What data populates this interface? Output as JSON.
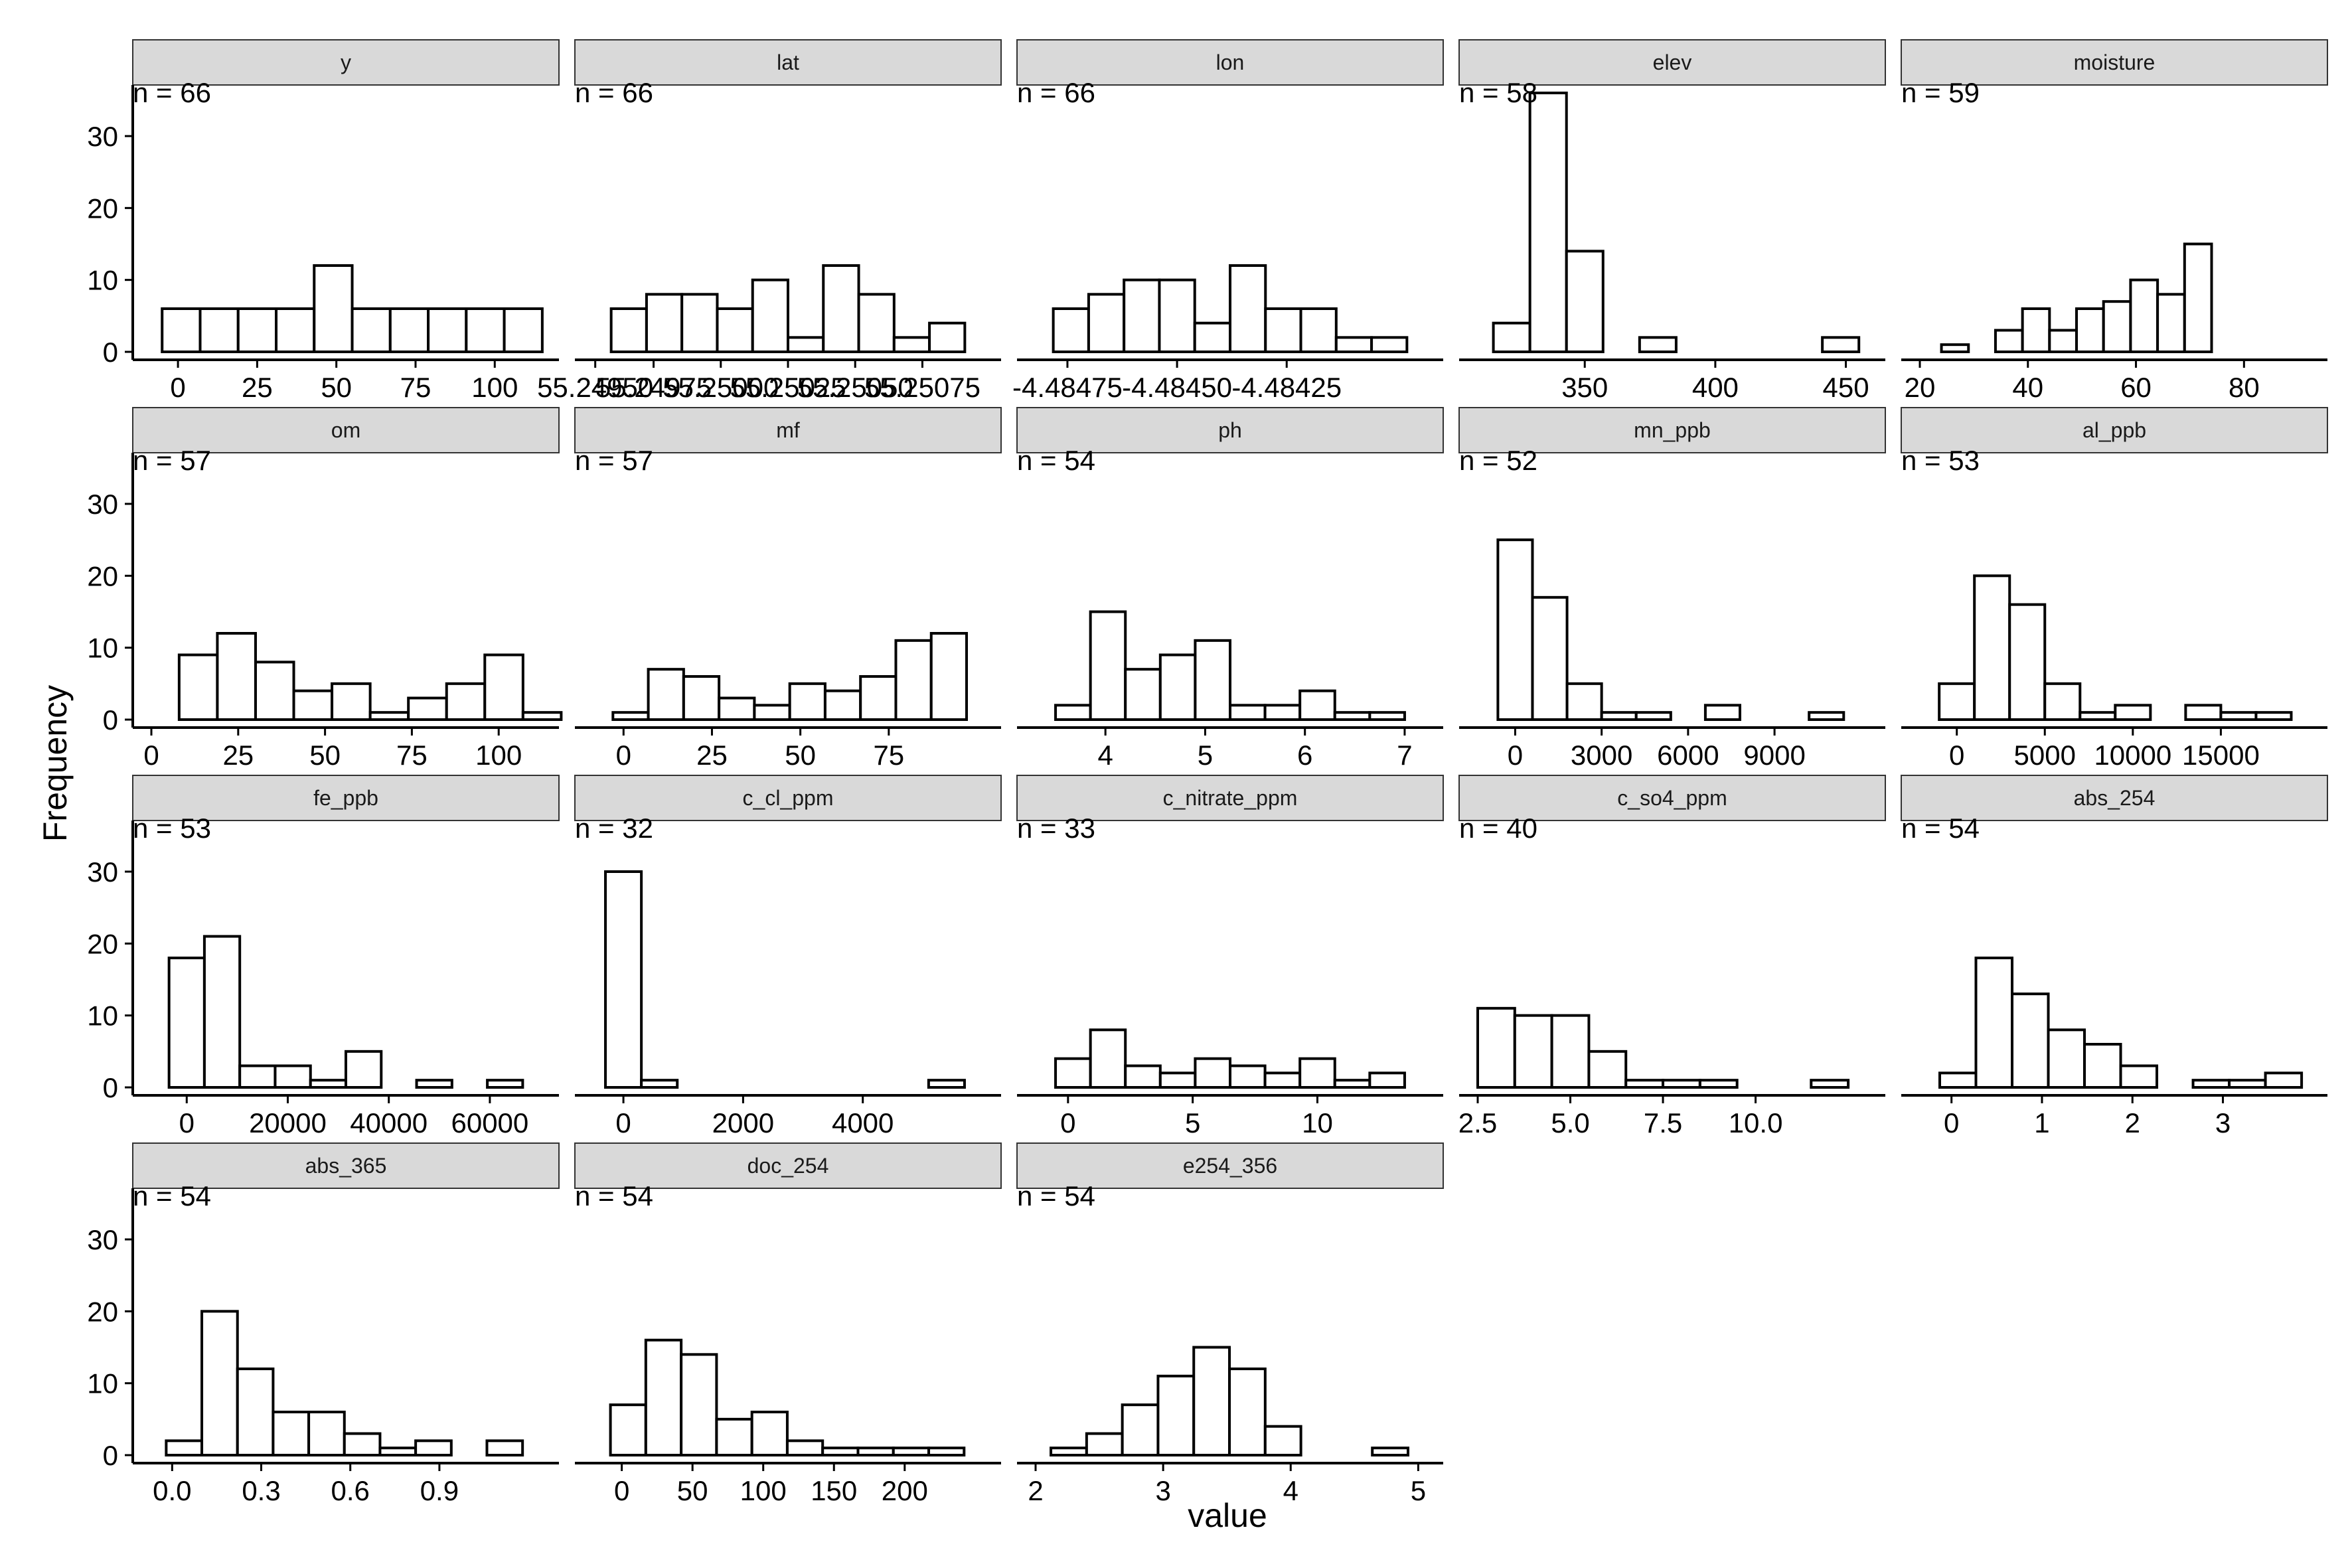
{
  "chart_data": {
    "type": "bar",
    "facet_layout": "4x5",
    "xlabel": "value",
    "ylabel": "Frequency",
    "y_ticks": [
      "0",
      "10",
      "20",
      "30"
    ],
    "ylim": [
      0,
      36
    ],
    "grid": false,
    "legend": "none",
    "colors": {
      "bar_fill": "#ffffff",
      "bar_stroke": "#000000",
      "strip_fill": "#d9d9d9",
      "strip_stroke": "#333333"
    },
    "panels": [
      {
        "name": "y",
        "n_label": "n = 66",
        "bins": [
          [
            -5,
            6
          ],
          [
            7,
            6
          ],
          [
            19,
            6
          ],
          [
            31,
            6
          ],
          [
            43,
            12
          ],
          [
            55,
            6
          ],
          [
            67,
            6
          ],
          [
            79,
            6
          ],
          [
            91,
            6
          ],
          [
            103,
            6
          ]
        ],
        "xlim": [
          -8.4,
          114.4
        ],
        "xticks": [
          {
            "v": 0,
            "l": "0"
          },
          {
            "v": 25,
            "l": "25"
          },
          {
            "v": 50,
            "l": "50"
          },
          {
            "v": 75,
            "l": "75"
          },
          {
            "v": 100,
            "l": "100"
          }
        ]
      },
      {
        "name": "lat",
        "n_label": "n = 66",
        "bins": [
          [
            0,
            6
          ],
          [
            1,
            8
          ],
          [
            2,
            8
          ],
          [
            3,
            6
          ],
          [
            4,
            10
          ],
          [
            5,
            2
          ],
          [
            6,
            12
          ],
          [
            7,
            8
          ],
          [
            8,
            2
          ],
          [
            9,
            4
          ]
        ],
        "xlim": [
          -0.5,
          10.5
        ],
        "xticks": [
          {
            "v": -0.45,
            "l": "55.24950"
          },
          {
            "v": 1.2,
            "l": "55.24975"
          },
          {
            "v": 3.1,
            "l": "55.25000"
          },
          {
            "v": 5.0,
            "l": "55.25025"
          },
          {
            "v": 6.9,
            "l": "55.25050"
          },
          {
            "v": 8.8,
            "l": "55.25075"
          }
        ]
      },
      {
        "name": "lon",
        "n_label": "n = 66",
        "bins": [
          [
            0,
            6
          ],
          [
            1,
            8
          ],
          [
            2,
            10
          ],
          [
            3,
            10
          ],
          [
            4,
            4
          ],
          [
            5,
            12
          ],
          [
            6,
            6
          ],
          [
            7,
            6
          ],
          [
            8,
            2
          ],
          [
            9,
            2
          ]
        ],
        "xlim": [
          -0.5,
          10.5
        ],
        "xticks": [
          {
            "v": 0.4,
            "l": "-4.48475"
          },
          {
            "v": 3.5,
            "l": "-4.48450"
          },
          {
            "v": 6.6,
            "l": "-4.48425"
          }
        ]
      },
      {
        "name": "elev",
        "n_label": "n = 58",
        "bins": [
          [
            315,
            4
          ],
          [
            329,
            36
          ],
          [
            343,
            14
          ],
          [
            357,
            0
          ],
          [
            371,
            2
          ],
          [
            385,
            0
          ],
          [
            399,
            0
          ],
          [
            413,
            0
          ],
          [
            427,
            0
          ],
          [
            441,
            2
          ]
        ],
        "xlim": [
          309,
          458
        ],
        "xticks": [
          {
            "v": 350,
            "l": "350"
          },
          {
            "v": 400,
            "l": "400"
          },
          {
            "v": 450,
            "l": "450"
          }
        ]
      },
      {
        "name": "moisture",
        "n_label": "n = 59",
        "bins": [
          [
            24,
            1
          ],
          [
            29,
            0
          ],
          [
            34,
            3
          ],
          [
            39,
            6
          ],
          [
            44,
            3
          ],
          [
            49,
            6
          ],
          [
            54,
            7
          ],
          [
            59,
            10
          ],
          [
            64,
            8
          ],
          [
            69,
            15
          ]
        ],
        "xlim": [
          20,
          92
        ],
        "xticks": [
          {
            "v": 20,
            "l": "20"
          },
          {
            "v": 40,
            "l": "40"
          },
          {
            "v": 60,
            "l": "60"
          },
          {
            "v": 80,
            "l": "80"
          }
        ]
      },
      {
        "name": "om",
        "n_label": "n = 57",
        "bins": [
          [
            8,
            9
          ],
          [
            19,
            12
          ],
          [
            30,
            8
          ],
          [
            41,
            4
          ],
          [
            52,
            5
          ],
          [
            63,
            1
          ],
          [
            74,
            3
          ],
          [
            85,
            5
          ],
          [
            96,
            9
          ],
          [
            107,
            1
          ]
        ],
        "xlim": [
          0,
          112
        ],
        "xticks": [
          {
            "v": 0,
            "l": "0"
          },
          {
            "v": 25,
            "l": "25"
          },
          {
            "v": 50,
            "l": "50"
          },
          {
            "v": 75,
            "l": "75"
          },
          {
            "v": 100,
            "l": "100"
          }
        ]
      },
      {
        "name": "mf",
        "n_label": "n = 57",
        "bins": [
          [
            -3,
            1
          ],
          [
            7,
            7
          ],
          [
            17,
            6
          ],
          [
            27,
            3
          ],
          [
            37,
            2
          ],
          [
            47,
            5
          ],
          [
            57,
            4
          ],
          [
            67,
            6
          ],
          [
            77,
            11
          ],
          [
            87,
            12
          ]
        ],
        "xlim": [
          -8.5,
          101.5
        ],
        "xticks": [
          {
            "v": 0,
            "l": "0"
          },
          {
            "v": 25,
            "l": "25"
          },
          {
            "v": 50,
            "l": "50"
          },
          {
            "v": 75,
            "l": "75"
          }
        ]
      },
      {
        "name": "ph",
        "n_label": "n = 54",
        "bins": [
          [
            3.5,
            2
          ],
          [
            3.85,
            15
          ],
          [
            4.2,
            7
          ],
          [
            4.55,
            9
          ],
          [
            4.9,
            11
          ],
          [
            5.25,
            2
          ],
          [
            5.6,
            2
          ],
          [
            5.95,
            4
          ],
          [
            6.3,
            1
          ],
          [
            6.65,
            1
          ]
        ],
        "xlim": [
          3.3,
          7.2
        ],
        "xticks": [
          {
            "v": 4,
            "l": "4"
          },
          {
            "v": 5,
            "l": "5"
          },
          {
            "v": 6,
            "l": "6"
          },
          {
            "v": 7,
            "l": "7"
          }
        ]
      },
      {
        "name": "mn_ppb",
        "n_label": "n = 52",
        "bins": [
          [
            -600,
            25
          ],
          [
            600,
            17
          ],
          [
            1800,
            5
          ],
          [
            3000,
            1
          ],
          [
            4200,
            1
          ],
          [
            5400,
            0
          ],
          [
            6600,
            2
          ],
          [
            7800,
            0
          ],
          [
            9000,
            0
          ],
          [
            10200,
            1
          ]
        ],
        "xlim": [
          -1300,
          12200
        ],
        "xticks": [
          {
            "v": 0,
            "l": "0"
          },
          {
            "v": 3000,
            "l": "3000"
          },
          {
            "v": 6000,
            "l": "6000"
          },
          {
            "v": 9000,
            "l": "9000"
          }
        ]
      },
      {
        "name": "al_ppb",
        "n_label": "n = 53",
        "bins": [
          [
            -1000,
            5
          ],
          [
            1000,
            20
          ],
          [
            3000,
            16
          ],
          [
            5000,
            5
          ],
          [
            7000,
            1
          ],
          [
            9000,
            2
          ],
          [
            11000,
            0
          ],
          [
            13000,
            2
          ],
          [
            15000,
            1
          ],
          [
            17000,
            1
          ]
        ],
        "xlim": [
          -2100,
          20000
        ],
        "xticks": [
          {
            "v": 0,
            "l": "0"
          },
          {
            "v": 5000,
            "l": "5000"
          },
          {
            "v": 10000,
            "l": "10000"
          },
          {
            "v": 15000,
            "l": "15000"
          }
        ]
      },
      {
        "name": "fe_ppb",
        "n_label": "n = 53",
        "bins": [
          [
            -3500,
            18
          ],
          [
            3500,
            21
          ],
          [
            10500,
            3
          ],
          [
            17500,
            3
          ],
          [
            24500,
            1
          ],
          [
            31500,
            5
          ],
          [
            38500,
            0
          ],
          [
            45500,
            1
          ],
          [
            52500,
            0
          ],
          [
            59500,
            1
          ]
        ],
        "xlim": [
          -7000,
          70000
        ],
        "xticks": [
          {
            "v": 0,
            "l": "0"
          },
          {
            "v": 20000,
            "l": "20000"
          },
          {
            "v": 40000,
            "l": "40000"
          },
          {
            "v": 60000,
            "l": "60000"
          }
        ]
      },
      {
        "name": "c_cl_ppm",
        "n_label": "n = 32",
        "bins": [
          [
            -300,
            30
          ],
          [
            300,
            1
          ],
          [
            900,
            0
          ],
          [
            1500,
            0
          ],
          [
            2100,
            0
          ],
          [
            2700,
            0
          ],
          [
            3300,
            0
          ],
          [
            3900,
            0
          ],
          [
            4500,
            0
          ],
          [
            5100,
            1
          ]
        ],
        "xlim": [
          -500,
          6000
        ],
        "xticks": [
          {
            "v": 0,
            "l": "0"
          },
          {
            "v": 2000,
            "l": "2000"
          },
          {
            "v": 4000,
            "l": "4000"
          }
        ]
      },
      {
        "name": "c_nitrate_ppm",
        "n_label": "n = 33",
        "bins": [
          [
            -0.5,
            4
          ],
          [
            0.9,
            8
          ],
          [
            2.3,
            3
          ],
          [
            3.7,
            2
          ],
          [
            5.1,
            4
          ],
          [
            6.5,
            3
          ],
          [
            7.9,
            2
          ],
          [
            9.3,
            4
          ],
          [
            10.7,
            1
          ],
          [
            12.1,
            2
          ]
        ],
        "xlim": [
          -1.3,
          14.3
        ],
        "xticks": [
          {
            "v": 0,
            "l": "0"
          },
          {
            "v": 5,
            "l": "5"
          },
          {
            "v": 10,
            "l": "10"
          }
        ]
      },
      {
        "name": "c_so4_ppm",
        "n_label": "n = 40",
        "bins": [
          [
            2.5,
            11
          ],
          [
            3.5,
            10
          ],
          [
            4.5,
            10
          ],
          [
            5.5,
            5
          ],
          [
            6.5,
            1
          ],
          [
            7.5,
            1
          ],
          [
            8.5,
            1
          ],
          [
            9.5,
            0
          ],
          [
            10.5,
            0
          ],
          [
            11.5,
            1
          ]
        ],
        "xlim": [
          2.5,
          13
        ],
        "xticks": [
          {
            "v": 2.5,
            "l": "2.5"
          },
          {
            "v": 5,
            "l": "5.0"
          },
          {
            "v": 7.5,
            "l": "7.5"
          },
          {
            "v": 10,
            "l": "10.0"
          }
        ]
      },
      {
        "name": "abs_254",
        "n_label": "n = 54",
        "bins": [
          [
            -0.13,
            2
          ],
          [
            0.27,
            18
          ],
          [
            0.67,
            13
          ],
          [
            1.07,
            8
          ],
          [
            1.47,
            6
          ],
          [
            1.87,
            3
          ],
          [
            2.27,
            0
          ],
          [
            2.67,
            1
          ],
          [
            3.07,
            1
          ],
          [
            3.47,
            2
          ]
        ],
        "xlim": [
          -0.35,
          3.95
        ],
        "xticks": [
          {
            "v": 0,
            "l": "0"
          },
          {
            "v": 1,
            "l": "1"
          },
          {
            "v": 2,
            "l": "2"
          },
          {
            "v": 3,
            "l": "3"
          }
        ]
      },
      {
        "name": "abs_365",
        "n_label": "n = 54",
        "bins": [
          [
            -0.02,
            2
          ],
          [
            0.1,
            20
          ],
          [
            0.22,
            12
          ],
          [
            0.34,
            6
          ],
          [
            0.46,
            6
          ],
          [
            0.58,
            3
          ],
          [
            0.7,
            1
          ],
          [
            0.82,
            2
          ],
          [
            0.94,
            0
          ],
          [
            1.06,
            2
          ]
        ],
        "xlim": [
          -0.07,
          1.24
        ],
        "xticks": [
          {
            "v": 0,
            "l": "0.0"
          },
          {
            "v": 0.3,
            "l": "0.3"
          },
          {
            "v": 0.6,
            "l": "0.6"
          },
          {
            "v": 0.9,
            "l": "0.9"
          }
        ]
      },
      {
        "name": "doc_254",
        "n_label": "n = 54",
        "bins": [
          [
            -8,
            7
          ],
          [
            17,
            16
          ],
          [
            42,
            14
          ],
          [
            67,
            5
          ],
          [
            92,
            6
          ],
          [
            117,
            2
          ],
          [
            142,
            1
          ],
          [
            167,
            1
          ],
          [
            192,
            1
          ],
          [
            217,
            1
          ]
        ],
        "xlim": [
          -20,
          255
        ],
        "xticks": [
          {
            "v": 0,
            "l": "0"
          },
          {
            "v": 50,
            "l": "50"
          },
          {
            "v": 100,
            "l": "100"
          },
          {
            "v": 150,
            "l": "150"
          },
          {
            "v": 200,
            "l": "200"
          }
        ]
      },
      {
        "name": "e254_356",
        "n_label": "n = 54",
        "bins": [
          [
            2.12,
            1
          ],
          [
            2.4,
            3
          ],
          [
            2.68,
            7
          ],
          [
            2.96,
            11
          ],
          [
            3.24,
            15
          ],
          [
            3.52,
            12
          ],
          [
            3.8,
            4
          ],
          [
            4.08,
            0
          ],
          [
            4.36,
            0
          ],
          [
            4.64,
            1
          ]
        ],
        "xlim": [
          2.0,
          5.05
        ],
        "xticks": [
          {
            "v": 2,
            "l": "2"
          },
          {
            "v": 3,
            "l": "3"
          },
          {
            "v": 4,
            "l": "4"
          },
          {
            "v": 5,
            "l": "5"
          }
        ]
      }
    ]
  }
}
